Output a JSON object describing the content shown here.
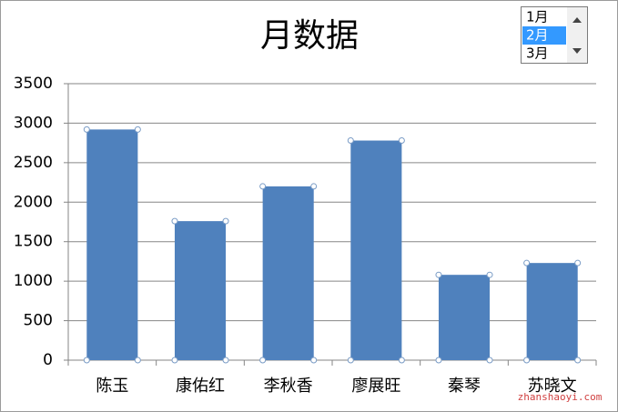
{
  "chart_data": {
    "type": "bar",
    "title": "月数据",
    "categories": [
      "陈玉",
      "康佑红",
      "李秋香",
      "廖展旺",
      "秦琴",
      "苏晓文"
    ],
    "values": [
      2920,
      1760,
      2200,
      2780,
      1080,
      1230
    ],
    "color": "#4f81bd",
    "ylim": [
      0,
      3500
    ],
    "yticks": [
      0,
      500,
      1000,
      1500,
      2000,
      2500,
      3000,
      3500
    ],
    "grid": true
  },
  "listbox": {
    "items": [
      "1月",
      "2月",
      "3月"
    ],
    "selected": 1
  },
  "watermark": "zhanshaoyi.com"
}
